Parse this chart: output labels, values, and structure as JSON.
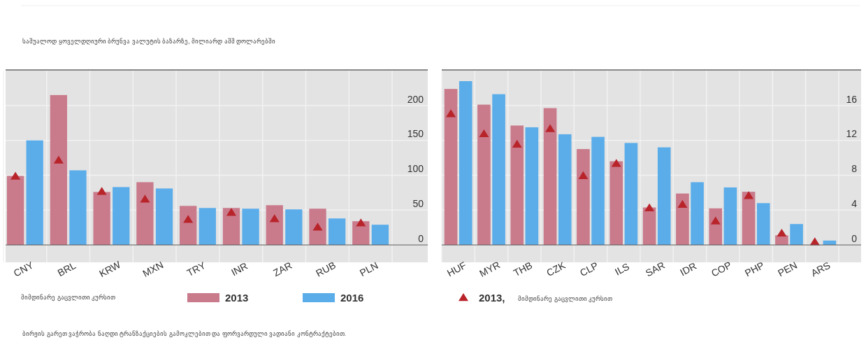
{
  "chart_data": [
    {
      "type": "bar",
      "title": "საშუალოდ ყოველდღიური ბრუნვა ვალუტის ბაზარზე, მილიარდ აშშ დოლარებში",
      "legend_title": "მიმდინარე გაცვლითი კურსით",
      "categories": [
        "CNY",
        "BRL",
        "KRW",
        "MXN",
        "TRY",
        "INR",
        "ZAR",
        "RUB",
        "PLN"
      ],
      "ylim": [
        -25,
        250
      ],
      "yticks": [
        0,
        50,
        100,
        150,
        200
      ],
      "grid": true,
      "legend": "bottom",
      "series": [
        {
          "name": "2013",
          "color": "#c97a8b",
          "values": [
            99,
            215,
            76,
            90,
            56,
            53,
            57,
            52,
            34
          ]
        },
        {
          "name": "2016",
          "color": "#5badea",
          "values": [
            150,
            107,
            83,
            81,
            53,
            52,
            51,
            38,
            29
          ]
        },
        {
          "type": "scatter",
          "marker": "triangle",
          "color": "#b8242a",
          "values": [
            98,
            121,
            76,
            65,
            36,
            46,
            37,
            25,
            31
          ]
        }
      ]
    },
    {
      "type": "bar",
      "legend_title": "მიმდინარე გაცვლითი კურსით",
      "categories": [
        "HUF",
        "MYR",
        "THB",
        "CZK",
        "CLP",
        "ILS",
        "SAR",
        "IDR",
        "COP",
        "PHP",
        "PEN",
        "ARS"
      ],
      "ylim": [
        -2,
        20
      ],
      "yticks": [
        0,
        4,
        8,
        12,
        16
      ],
      "grid": true,
      "legend": "bottom",
      "annotations": [
        "ბირჟის გარეთ ვაჭრობა ნაღდი ტრანზაქციების გამოკლებით და ფორვარდული ვადიანი კონტრაქტებით."
      ],
      "series": [
        {
          "color": "#c97a8b",
          "values": [
            17.9,
            16.1,
            13.7,
            15.7,
            11.0,
            9.6,
            4.3,
            5.9,
            4.2,
            6.1,
            1.1,
            null
          ]
        },
        {
          "color": "#5badea",
          "values": [
            18.8,
            17.3,
            13.5,
            12.7,
            12.4,
            11.7,
            11.2,
            7.2,
            6.6,
            4.8,
            2.4,
            0.5
          ]
        },
        {
          "type": "scatter",
          "name": "2013,",
          "marker": "triangle",
          "color": "#b8242a",
          "values": [
            15.0,
            12.7,
            11.5,
            13.3,
            7.9,
            9.3,
            4.2,
            4.6,
            2.7,
            5.6,
            1.3,
            0.3
          ]
        }
      ]
    }
  ]
}
